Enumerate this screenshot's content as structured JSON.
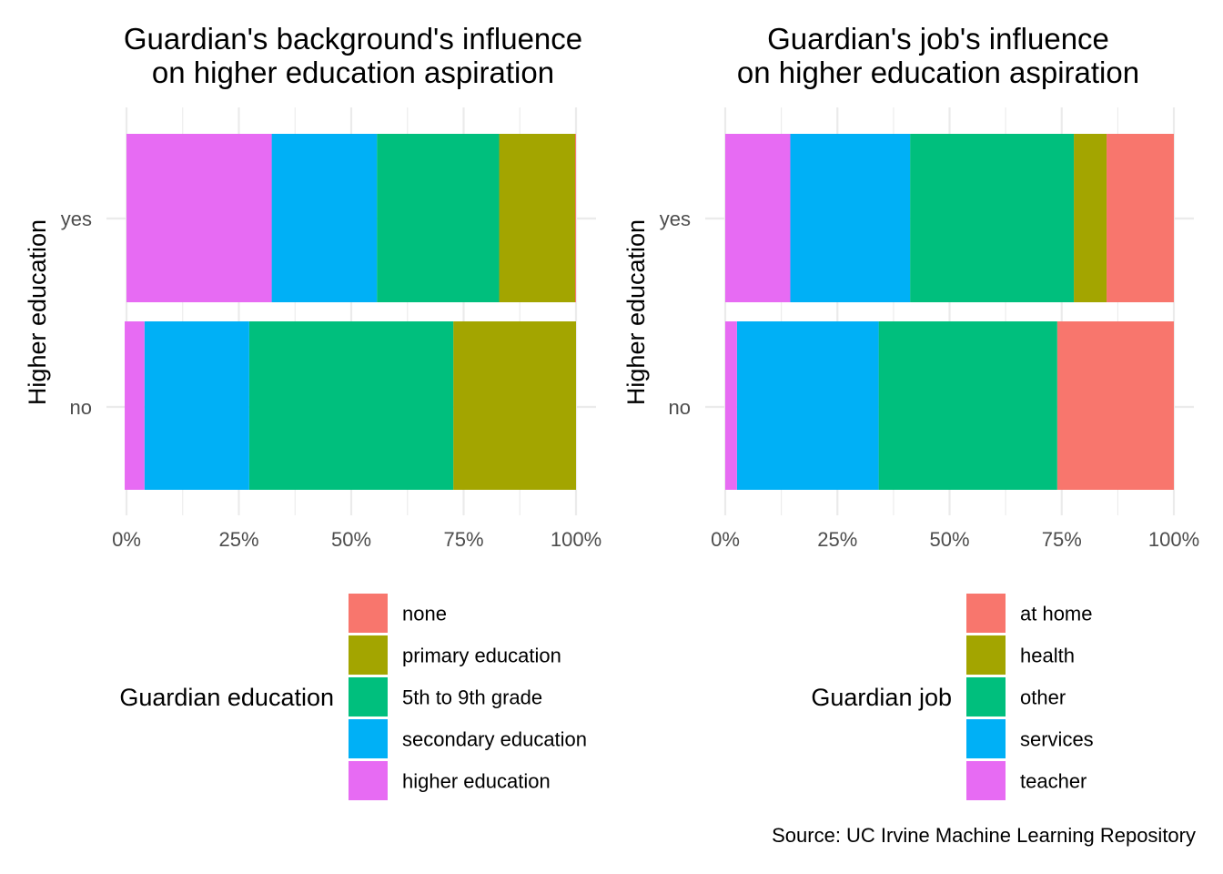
{
  "caption": "Source: UC Irvine Machine Learning Repository",
  "chart_data": [
    {
      "type": "bar",
      "orientation": "horizontal",
      "stacked": "percent",
      "title_lines": [
        "Guardian's background's influence",
        "on higher education aspiration"
      ],
      "xlabel": "",
      "ylabel": "Higher education",
      "categories": [
        "yes",
        "no"
      ],
      "xlim": [
        0,
        100
      ],
      "x_ticks": [
        "0%",
        "25%",
        "50%",
        "75%",
        "100%"
      ],
      "grid": true,
      "legend_title": "Guardian education",
      "legend_position": "bottom",
      "series": [
        {
          "name": "none",
          "color": "#F8766D",
          "values": [
            0.2,
            0
          ]
        },
        {
          "name": "primary education",
          "color": "#A3A500",
          "values": [
            16.9,
            27.3
          ]
        },
        {
          "name": "5th to 9th grade",
          "color": "#00BF7D",
          "values": [
            27.2,
            45.4
          ]
        },
        {
          "name": "secondary education",
          "color": "#00B0F6",
          "values": [
            23.4,
            23.3
          ]
        },
        {
          "name": "higher education",
          "color": "#E76BF3",
          "values": [
            32.3,
            4.4
          ]
        }
      ]
    },
    {
      "type": "bar",
      "orientation": "horizontal",
      "stacked": "percent",
      "title_lines": [
        "Guardian's job's influence",
        "on higher education aspiration"
      ],
      "xlabel": "",
      "ylabel": "Higher education",
      "categories": [
        "yes",
        "no"
      ],
      "xlim": [
        0,
        100
      ],
      "x_ticks": [
        "0%",
        "25%",
        "50%",
        "75%",
        "100%"
      ],
      "grid": true,
      "legend_title": "Guardian job",
      "legend_position": "bottom",
      "series": [
        {
          "name": "at home",
          "color": "#F8766D",
          "values": [
            15.0,
            26.0
          ]
        },
        {
          "name": "health",
          "color": "#A3A500",
          "values": [
            7.3,
            0
          ]
        },
        {
          "name": "other",
          "color": "#00BF7D",
          "values": [
            36.5,
            39.8
          ]
        },
        {
          "name": "services",
          "color": "#00B0F6",
          "values": [
            26.7,
            31.6
          ]
        },
        {
          "name": "teacher",
          "color": "#E76BF3",
          "values": [
            14.5,
            2.6
          ]
        }
      ]
    }
  ]
}
